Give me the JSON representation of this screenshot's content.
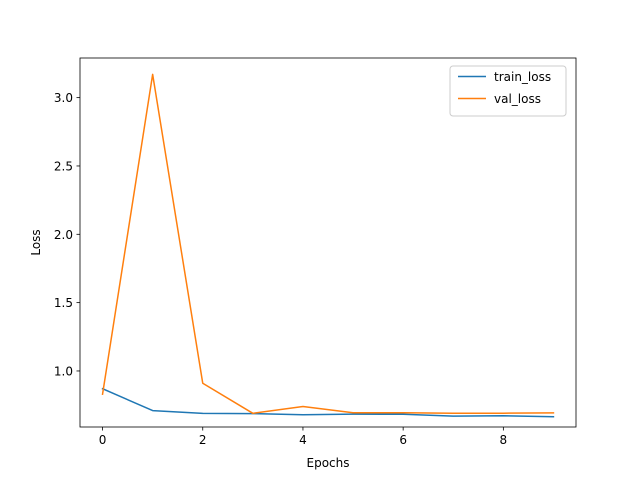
{
  "chart_data": {
    "type": "line",
    "xlabel": "Epochs",
    "ylabel": "Loss",
    "xlim": [
      -0.45,
      9.45
    ],
    "ylim": [
      0.59,
      3.29
    ],
    "x_ticks": [
      0,
      2,
      4,
      6,
      8
    ],
    "y_ticks": [
      1.0,
      1.5,
      2.0,
      2.5,
      3.0
    ],
    "x_tick_labels": [
      "0",
      "2",
      "4",
      "6",
      "8"
    ],
    "y_tick_labels": [
      "1.0",
      "1.5",
      "2.0",
      "2.5",
      "3.0"
    ],
    "grid": false,
    "legend_position": "top-right",
    "x": [
      0,
      1,
      2,
      3,
      4,
      5,
      6,
      7,
      8,
      9
    ],
    "series": [
      {
        "name": "train_loss",
        "color": "#1f77b4",
        "values": [
          0.87,
          0.71,
          0.69,
          0.688,
          0.68,
          0.684,
          0.683,
          0.67,
          0.672,
          0.665
        ]
      },
      {
        "name": "val_loss",
        "color": "#ff7f0e",
        "values": [
          0.83,
          3.17,
          0.91,
          0.69,
          0.74,
          0.694,
          0.694,
          0.691,
          0.691,
          0.693
        ]
      }
    ]
  }
}
